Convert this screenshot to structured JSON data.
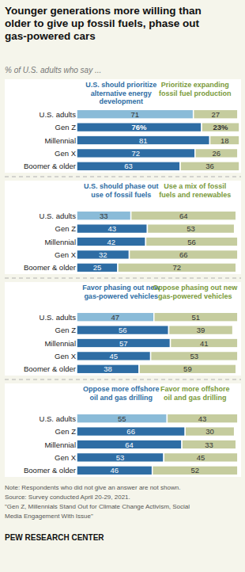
{
  "chart_data": [
    {
      "type": "bar",
      "orientation": "horizontal",
      "stacked": true,
      "data_labels": true,
      "tick_labels": false,
      "title": "Younger generations more willing than\nolder to give up fossil fuels, phase out\ngas-powered cars",
      "subtitle": "% of U.S. adults who say ...",
      "annotations": [
        "Note: Respondents who did not give an answer are not shown.\nSource: Survey conducted April 20-29, 2021.\n\"Gen Z, Millennials Stand Out for Climate Change Activism, Social\nMedia Engagement With Issue\"",
        "PEW RESEARCH CENTER"
      ],
      "categories": [
        "U.S. adults",
        "Gen Z",
        "Millennial",
        "Gen X",
        "Boomer & older"
      ],
      "xlim": [
        0,
        100
      ],
      "series": [
        {
          "name": "U.S. should prioritize\nalternative energy\ndevelopment",
          "color": "#2e6da4",
          "colors": [
            "#8abbd8",
            "#2e6da4",
            "#2e6da4",
            "#2e6da4",
            "#2e6da4"
          ],
          "values": [
            71,
            76,
            81,
            72,
            63
          ],
          "value_labels": [
            "71",
            "76%",
            "81",
            "72",
            "63"
          ]
        },
        {
          "name": "Prioritize expanding\nfossil fuel production",
          "color": "#c5cc9e",
          "values": [
            27,
            23,
            18,
            26,
            36
          ],
          "value_labels": [
            "27",
            "23%",
            "18",
            "26",
            "36"
          ]
        }
      ]
    },
    {
      "type": "bar",
      "orientation": "horizontal",
      "stacked": true,
      "data_labels": true,
      "tick_labels": false,
      "categories": [
        "U.S. adults",
        "Gen Z",
        "Millennial",
        "Gen X",
        "Boomer & older"
      ],
      "xlim": [
        0,
        100
      ],
      "series": [
        {
          "name": "U.S. should phase out\nuse of fossil fuels",
          "color": "#2e6da4",
          "colors": [
            "#8abbd8",
            "#2e6da4",
            "#2e6da4",
            "#2e6da4",
            "#2e6da4"
          ],
          "values": [
            33,
            43,
            42,
            32,
            25
          ]
        },
        {
          "name": "Use a mix of fossil\nfuels and renewables",
          "color": "#c5cc9e",
          "values": [
            64,
            53,
            56,
            66,
            72
          ]
        }
      ]
    },
    {
      "type": "bar",
      "orientation": "horizontal",
      "stacked": true,
      "data_labels": true,
      "tick_labels": false,
      "categories": [
        "U.S. adults",
        "Gen Z",
        "Millennial",
        "Gen X",
        "Boomer & older"
      ],
      "xlim": [
        0,
        100
      ],
      "series": [
        {
          "name": "Favor phasing out new\ngas-powered vehicles",
          "color": "#2e6da4",
          "colors": [
            "#8abbd8",
            "#2e6da4",
            "#2e6da4",
            "#2e6da4",
            "#2e6da4"
          ],
          "values": [
            47,
            56,
            57,
            45,
            38
          ]
        },
        {
          "name": "Oppose phasing out new\ngas-powered vehicles",
          "color": "#c5cc9e",
          "values": [
            51,
            39,
            41,
            53,
            59
          ]
        }
      ]
    },
    {
      "type": "bar",
      "orientation": "horizontal",
      "stacked": true,
      "data_labels": true,
      "tick_labels": false,
      "categories": [
        "U.S. adults",
        "Gen Z",
        "Millennial",
        "Gen X",
        "Boomer & older"
      ],
      "xlim": [
        0,
        100
      ],
      "series": [
        {
          "name": "Oppose more offshore\noil and gas drilling",
          "color": "#2e6da4",
          "colors": [
            "#8abbd8",
            "#2e6da4",
            "#2e6da4",
            "#2e6da4",
            "#2e6da4"
          ],
          "values": [
            55,
            66,
            64,
            53,
            46
          ]
        },
        {
          "name": "Favor more offshore\noil and gas drilling",
          "color": "#c5cc9e",
          "values": [
            43,
            30,
            33,
            45,
            52
          ]
        }
      ]
    }
  ]
}
